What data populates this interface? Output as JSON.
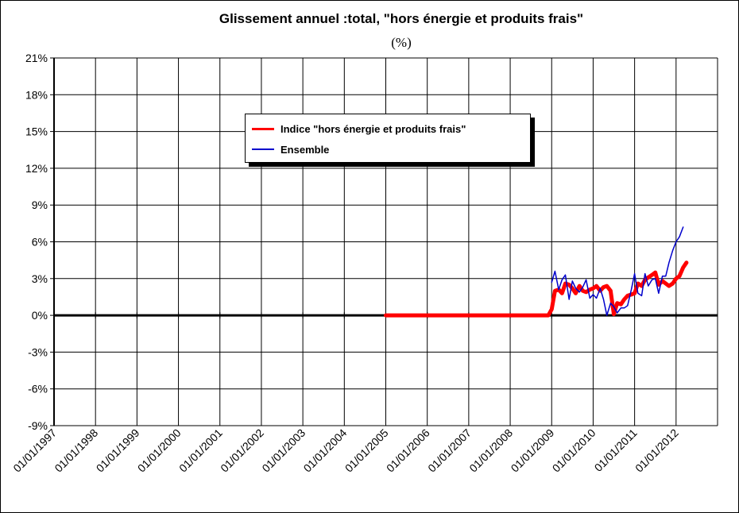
{
  "title": "Glissement annuel :total, \"hors énergie et  produits frais\"",
  "subtitle": "(%)",
  "colors": {
    "core": "#ff0000",
    "total": "#0000cc",
    "grid": "#000000"
  },
  "chart_data": {
    "type": "line",
    "title": "Glissement annuel :total, \"hors énergie et  produits frais\"",
    "subtitle": "(%)",
    "ylim": [
      -9,
      21
    ],
    "y_ticks": [
      "21%",
      "18%",
      "15%",
      "12%",
      "9%",
      "6%",
      "3%",
      "0%",
      "-3%",
      "-6%",
      "-9%"
    ],
    "x_tick_labels": [
      "01/01/1997",
      "01/01/1998",
      "01/01/1999",
      "01/01/2000",
      "01/01/2001",
      "01/01/2002",
      "01/01/2003",
      "01/01/2004",
      "01/01/2005",
      "01/01/2006",
      "01/01/2007",
      "01/01/2008",
      "01/01/2009",
      "01/01/2010",
      "01/01/2011",
      "01/01/2012"
    ],
    "grid": true,
    "legend_position": "upper-center",
    "series": [
      {
        "name": "Indice \"hors énergie et produits frais\"",
        "color": "#ff0000",
        "points": [
          [
            2005.0,
            0
          ],
          [
            2006.0,
            0
          ],
          [
            2007.0,
            0
          ],
          [
            2008.0,
            0
          ],
          [
            2008.92,
            0
          ],
          [
            2009.0,
            0.5
          ],
          [
            2009.08,
            2.0
          ],
          [
            2009.17,
            2.1
          ],
          [
            2009.25,
            1.8
          ],
          [
            2009.33,
            2.6
          ],
          [
            2009.42,
            2.5
          ],
          [
            2009.5,
            2.2
          ],
          [
            2009.58,
            1.8
          ],
          [
            2009.67,
            2.4
          ],
          [
            2009.75,
            2.0
          ],
          [
            2009.83,
            1.9
          ],
          [
            2009.92,
            2.1
          ],
          [
            2010.0,
            2.2
          ],
          [
            2010.08,
            2.4
          ],
          [
            2010.17,
            2.0
          ],
          [
            2010.25,
            2.3
          ],
          [
            2010.33,
            2.4
          ],
          [
            2010.42,
            2.0
          ],
          [
            2010.5,
            0.1
          ],
          [
            2010.58,
            1.0
          ],
          [
            2010.67,
            0.9
          ],
          [
            2010.75,
            1.3
          ],
          [
            2010.83,
            1.6
          ],
          [
            2010.92,
            1.7
          ],
          [
            2011.0,
            1.8
          ],
          [
            2011.08,
            2.6
          ],
          [
            2011.17,
            2.4
          ],
          [
            2011.25,
            2.9
          ],
          [
            2011.33,
            3.1
          ],
          [
            2011.42,
            3.3
          ],
          [
            2011.5,
            3.5
          ],
          [
            2011.58,
            2.5
          ],
          [
            2011.67,
            2.8
          ],
          [
            2011.75,
            2.6
          ],
          [
            2011.83,
            2.4
          ],
          [
            2011.92,
            2.6
          ],
          [
            2012.0,
            3.0
          ],
          [
            2012.08,
            3.2
          ],
          [
            2012.17,
            3.9
          ],
          [
            2012.25,
            4.3
          ]
        ]
      },
      {
        "name": "Ensemble",
        "color": "#0000cc",
        "points": [
          [
            2009.0,
            2.7
          ],
          [
            2009.08,
            3.6
          ],
          [
            2009.17,
            2.1
          ],
          [
            2009.25,
            2.9
          ],
          [
            2009.33,
            3.3
          ],
          [
            2009.42,
            1.3
          ],
          [
            2009.5,
            2.8
          ],
          [
            2009.58,
            2.2
          ],
          [
            2009.67,
            1.9
          ],
          [
            2009.75,
            2.3
          ],
          [
            2009.83,
            2.9
          ],
          [
            2009.92,
            1.4
          ],
          [
            2010.0,
            1.7
          ],
          [
            2010.08,
            1.4
          ],
          [
            2010.17,
            2.2
          ],
          [
            2010.25,
            1.3
          ],
          [
            2010.33,
            0.0
          ],
          [
            2010.42,
            1.0
          ],
          [
            2010.5,
            0.7
          ],
          [
            2010.58,
            0.2
          ],
          [
            2010.67,
            0.6
          ],
          [
            2010.75,
            0.6
          ],
          [
            2010.83,
            0.8
          ],
          [
            2010.92,
            2.1
          ],
          [
            2011.0,
            3.4
          ],
          [
            2011.08,
            1.8
          ],
          [
            2011.17,
            1.6
          ],
          [
            2011.25,
            3.4
          ],
          [
            2011.33,
            2.4
          ],
          [
            2011.42,
            2.9
          ],
          [
            2011.5,
            3.0
          ],
          [
            2011.58,
            1.8
          ],
          [
            2011.67,
            3.2
          ],
          [
            2011.75,
            3.2
          ],
          [
            2011.83,
            4.3
          ],
          [
            2011.92,
            5.3
          ],
          [
            2012.0,
            6.0
          ],
          [
            2012.08,
            6.4
          ],
          [
            2012.17,
            7.2
          ]
        ]
      }
    ]
  }
}
